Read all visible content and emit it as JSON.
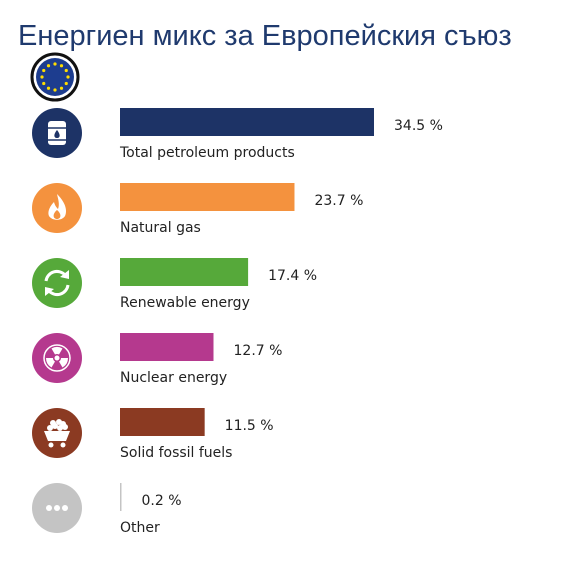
{
  "title": "Енергиен микс за Европейския съюз",
  "flag_icon": "eu-flag-icon",
  "chart_data": {
    "type": "bar",
    "orientation": "horizontal",
    "categories": [
      "Total petroleum products",
      "Natural gas",
      "Renewable energy",
      "Nuclear energy",
      "Solid fossil fuels",
      "Other"
    ],
    "values": [
      34.5,
      23.7,
      17.4,
      12.7,
      11.5,
      0.2
    ],
    "value_labels": [
      "34.5 %",
      "23.7 %",
      "17.4 %",
      "12.7 %",
      "11.5 %",
      "0.2 %"
    ],
    "colors": [
      "#1d3366",
      "#f4923e",
      "#56a93a",
      "#b5398e",
      "#8b3a22",
      "#c4c4c4"
    ],
    "icons": [
      "oil-barrel-icon",
      "flame-icon",
      "recycle-icon",
      "radiation-icon",
      "coal-cart-icon",
      "more-dots-icon"
    ],
    "grid": false,
    "legend": "none"
  }
}
